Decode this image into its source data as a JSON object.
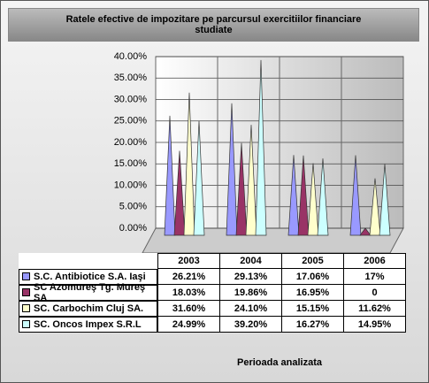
{
  "chart_data": {
    "type": "cone",
    "title": "Ratele efective de impozitare pe parcursul exercitiilor financiare studiate",
    "x_label": "Perioada analizata",
    "categories": [
      "2003",
      "2004",
      "2005",
      "2006"
    ],
    "series": [
      {
        "name": "S.C. Antibiotice S.A. Iaşi",
        "color": "#9999ff",
        "values": [
          26.21,
          29.13,
          17.06,
          17
        ],
        "value_labels": [
          "26.21%",
          "29.13%",
          "17.06%",
          "17%"
        ]
      },
      {
        "name": "SC Azomureş Tg. Mureş SA",
        "color": "#993366",
        "values": [
          18.03,
          19.86,
          16.95,
          0
        ],
        "value_labels": [
          "18.03%",
          "19.86%",
          "16.95%",
          "0"
        ]
      },
      {
        "name": "SC. Carbochim Cluj SA.",
        "color": "#ffffcc",
        "values": [
          31.6,
          24.1,
          15.15,
          11.62
        ],
        "value_labels": [
          "31.60%",
          "24.10%",
          "15.15%",
          "11.62%"
        ]
      },
      {
        "name": "SC. Oncos Impex S.R.L",
        "color": "#ccffff",
        "values": [
          24.99,
          39.2,
          16.27,
          14.95
        ],
        "value_labels": [
          "24.99%",
          "39.20%",
          "16.27%",
          "14.95%"
        ]
      }
    ],
    "ylim": [
      0,
      40
    ],
    "yticks": [
      {
        "value": 0,
        "label": "0.00%"
      },
      {
        "value": 5,
        "label": "5.00%"
      },
      {
        "value": 10,
        "label": "10.00%"
      },
      {
        "value": 15,
        "label": "15.00%"
      },
      {
        "value": 20,
        "label": "20.00%"
      },
      {
        "value": 25,
        "label": "25.00%"
      },
      {
        "value": 30,
        "label": "30.00%"
      },
      {
        "value": 35,
        "label": "35.00%"
      },
      {
        "value": 40,
        "label": "40.00%"
      }
    ],
    "grid": true
  }
}
